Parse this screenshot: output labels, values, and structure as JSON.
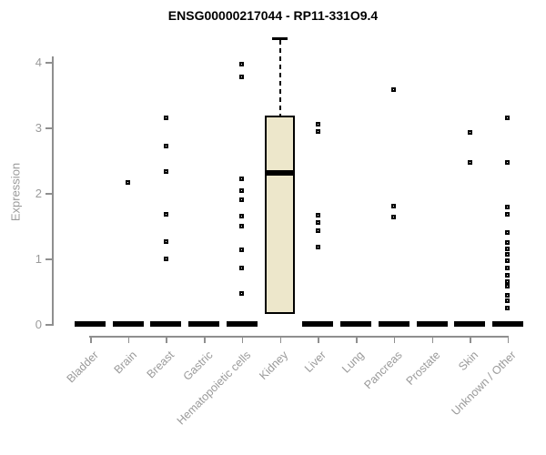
{
  "chart_data": {
    "type": "boxplot",
    "title": "ENSG00000217044 - RP11-331O9.4",
    "ylabel": "Expression",
    "ylim": [
      0,
      4.4
    ],
    "yticks": [
      0,
      1,
      2,
      3,
      4
    ],
    "grid": false,
    "legend": "none",
    "categories": [
      "Bladder",
      "Brain",
      "Breast",
      "Gastric",
      "Hematopoietic cells",
      "Kidney",
      "Liver",
      "Lung",
      "Pancreas",
      "Prostate",
      "Skin",
      "Unknown / Other"
    ],
    "boxes": [
      {
        "category": "Bladder",
        "q1": 0,
        "median": 0,
        "q3": 0,
        "whisker_low": 0,
        "whisker_high": 0,
        "outliers": []
      },
      {
        "category": "Brain",
        "q1": 0,
        "median": 0,
        "q3": 0,
        "whisker_low": 0,
        "whisker_high": 0,
        "outliers": [
          2.16
        ]
      },
      {
        "category": "Breast",
        "q1": 0,
        "median": 0,
        "q3": 0,
        "whisker_low": 0,
        "whisker_high": 0,
        "outliers": [
          3.15,
          2.72,
          2.33,
          1.67,
          1.26,
          1.0
        ]
      },
      {
        "category": "Gastric",
        "q1": 0,
        "median": 0,
        "q3": 0,
        "whisker_low": 0,
        "whisker_high": 0,
        "outliers": []
      },
      {
        "category": "Hematopoietic cells",
        "q1": 0,
        "median": 0,
        "q3": 0,
        "whisker_low": 0,
        "whisker_high": 0,
        "outliers": [
          3.96,
          3.77,
          2.21,
          2.04,
          1.9,
          1.65,
          1.49,
          1.13,
          0.86,
          0.46
        ]
      },
      {
        "category": "Kidney",
        "q1": 0.15,
        "median": 2.3,
        "q3": 3.18,
        "whisker_low": 0.15,
        "whisker_high": 4.36,
        "outliers": []
      },
      {
        "category": "Liver",
        "q1": 0,
        "median": 0,
        "q3": 0,
        "whisker_low": 0,
        "whisker_high": 0,
        "outliers": [
          3.05,
          2.94,
          1.66,
          1.55,
          1.42,
          1.18
        ]
      },
      {
        "category": "Lung",
        "q1": 0,
        "median": 0,
        "q3": 0,
        "whisker_low": 0,
        "whisker_high": 0,
        "outliers": []
      },
      {
        "category": "Pancreas",
        "q1": 0,
        "median": 0,
        "q3": 0,
        "whisker_low": 0,
        "whisker_high": 0,
        "outliers": [
          3.58,
          1.8,
          1.63
        ]
      },
      {
        "category": "Prostate",
        "q1": 0,
        "median": 0,
        "q3": 0,
        "whisker_low": 0,
        "whisker_high": 0,
        "outliers": []
      },
      {
        "category": "Skin",
        "q1": 0,
        "median": 0,
        "q3": 0,
        "whisker_low": 0,
        "whisker_high": 0,
        "outliers": [
          2.92,
          2.46
        ]
      },
      {
        "category": "Unknown / Other",
        "q1": 0,
        "median": 0,
        "q3": 0,
        "whisker_low": 0,
        "whisker_high": 0,
        "outliers": [
          3.14,
          2.47,
          1.79,
          1.68,
          1.4,
          1.25,
          1.15,
          1.06,
          0.97,
          0.85,
          0.75,
          0.65,
          0.58,
          0.44,
          0.35,
          0.25
        ]
      }
    ],
    "colors": {
      "box_fill": "#EDE7CB",
      "box_border": "#000000",
      "median": "#000000",
      "outlier": "#000000",
      "axis": "#8F8F8F",
      "text": "#9A9A9A",
      "title": "#000000",
      "background": "#FFFFFF"
    }
  }
}
